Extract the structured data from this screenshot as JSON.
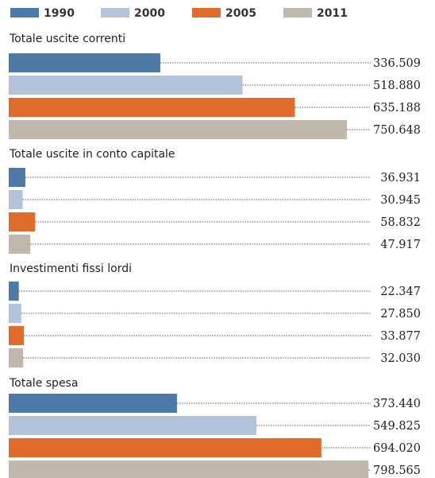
{
  "chart_data": {
    "type": "bar",
    "orientation": "horizontal",
    "series": [
      {
        "name": "1990",
        "color": "#4d7aa9"
      },
      {
        "name": "2000",
        "color": "#b3c3dc"
      },
      {
        "name": "2005",
        "color": "#e06c2c"
      },
      {
        "name": "2011",
        "color": "#c0b8ac"
      }
    ],
    "groups": [
      {
        "title": "Totale uscite correnti",
        "values": [
          336509,
          518880,
          635188,
          750648
        ],
        "labels": [
          "336.509",
          "518.880",
          "635.188",
          "750.648"
        ]
      },
      {
        "title": "Totale uscite in conto capitale",
        "values": [
          36931,
          30945,
          58832,
          47917
        ],
        "labels": [
          "36.931",
          "30.945",
          "58.832",
          "47.917"
        ]
      },
      {
        "title": "Investimenti fissi lordi",
        "values": [
          22347,
          27850,
          33877,
          32030
        ],
        "labels": [
          "22.347",
          "27.850",
          "33.877",
          "32.030"
        ]
      },
      {
        "title": "Totale spesa",
        "values": [
          373440,
          549825,
          694020,
          798565
        ],
        "labels": [
          "373.440",
          "549.825",
          "694.020",
          "798.565"
        ]
      }
    ],
    "legend_position": "top",
    "xlim": [
      0,
      800000
    ],
    "grid": false
  }
}
